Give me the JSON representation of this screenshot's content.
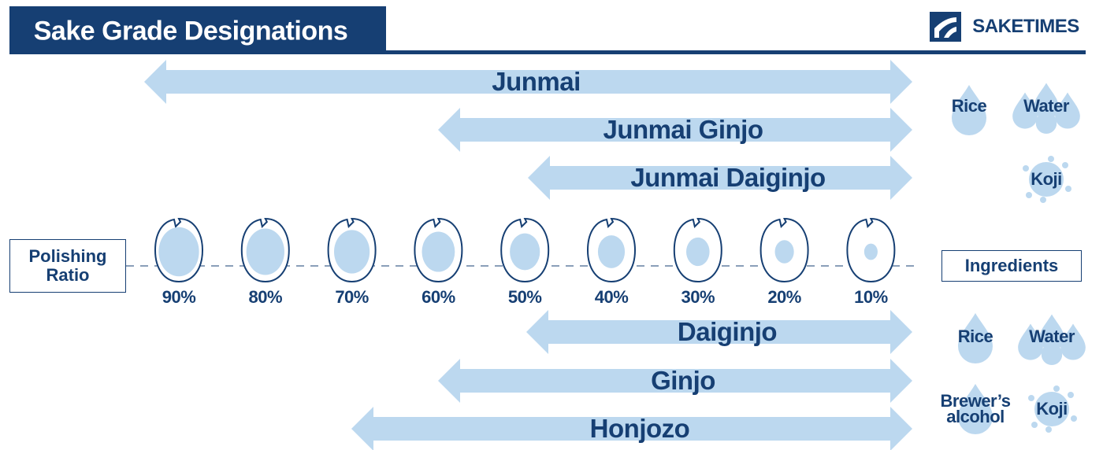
{
  "header": {
    "title": "Sake Grade Designations",
    "brand": "SAKETIMES"
  },
  "polishing": {
    "label": "Polishing Ratio",
    "ratios": [
      {
        "value": 90,
        "label": "90%"
      },
      {
        "value": 80,
        "label": "80%"
      },
      {
        "value": 70,
        "label": "70%"
      },
      {
        "value": 60,
        "label": "60%"
      },
      {
        "value": 50,
        "label": "50%"
      },
      {
        "value": 40,
        "label": "40%"
      },
      {
        "value": 30,
        "label": "30%"
      },
      {
        "value": 20,
        "label": "20%"
      },
      {
        "value": 10,
        "label": "10%"
      }
    ]
  },
  "grades": [
    "Junmai",
    "Junmai Ginjo",
    "Junmai Daiginjo",
    "Daiginjo",
    "Ginjo",
    "Honjozo"
  ],
  "ingredients": {
    "label": "Ingredients",
    "pure": [
      "Rice",
      "Water",
      "Koji"
    ],
    "added": [
      "Rice",
      "Water",
      "Brewer’s alcohol",
      "Koji"
    ]
  }
}
